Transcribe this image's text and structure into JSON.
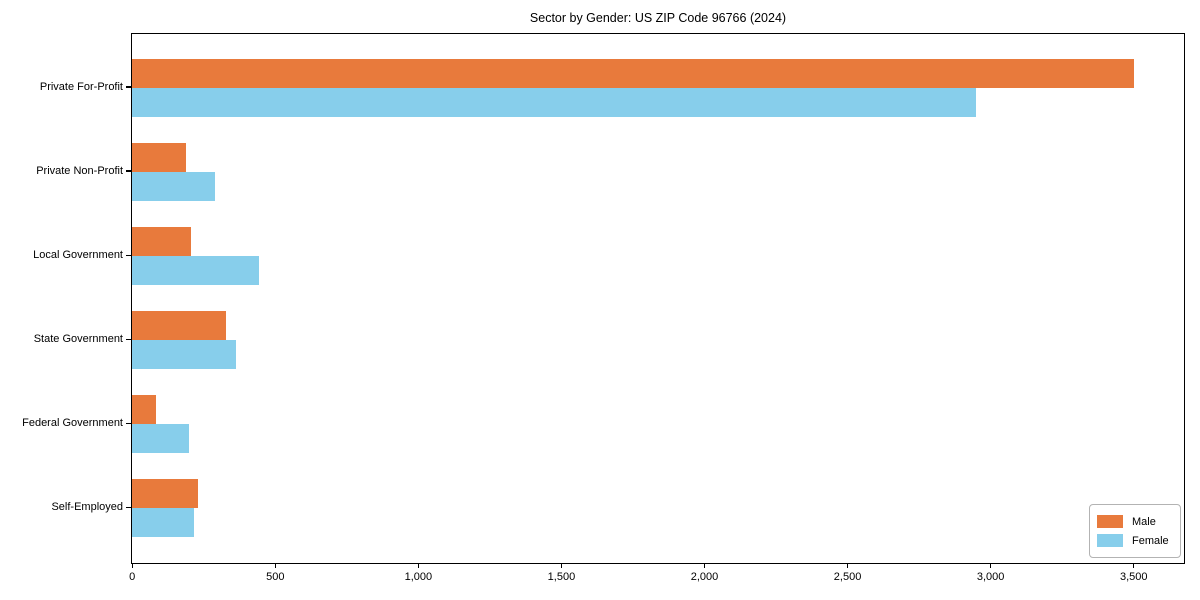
{
  "chart_data": {
    "type": "bar",
    "orientation": "horizontal",
    "title": "Sector by Gender: US ZIP Code 96766 (2024)",
    "categories": [
      "Private For-Profit",
      "Private Non-Profit",
      "Local Government",
      "State Government",
      "Federal Government",
      "Self-Employed"
    ],
    "series": [
      {
        "name": "Male",
        "color": "#E87A3C",
        "values": [
          3500,
          190,
          205,
          330,
          85,
          230
        ]
      },
      {
        "name": "Female",
        "color": "#87CEEB",
        "values": [
          2950,
          290,
          445,
          365,
          200,
          215
        ]
      }
    ],
    "xlabel": "",
    "ylabel": "",
    "xlim": [
      0,
      3675
    ],
    "xticks": [
      0,
      500,
      1000,
      1500,
      2000,
      2500,
      3000,
      3500
    ],
    "xtick_labels": [
      "0",
      "500",
      "1,000",
      "1,500",
      "2,000",
      "2,500",
      "3,000",
      "3,500"
    ],
    "grid": false,
    "legend": {
      "position": "lower-right",
      "entries": [
        "Male",
        "Female"
      ]
    },
    "colors": {
      "male": "#E87A3C",
      "female": "#87CEEB",
      "axis": "#000000",
      "background": "#ffffff",
      "legend_border": "#b3b3b3"
    }
  }
}
